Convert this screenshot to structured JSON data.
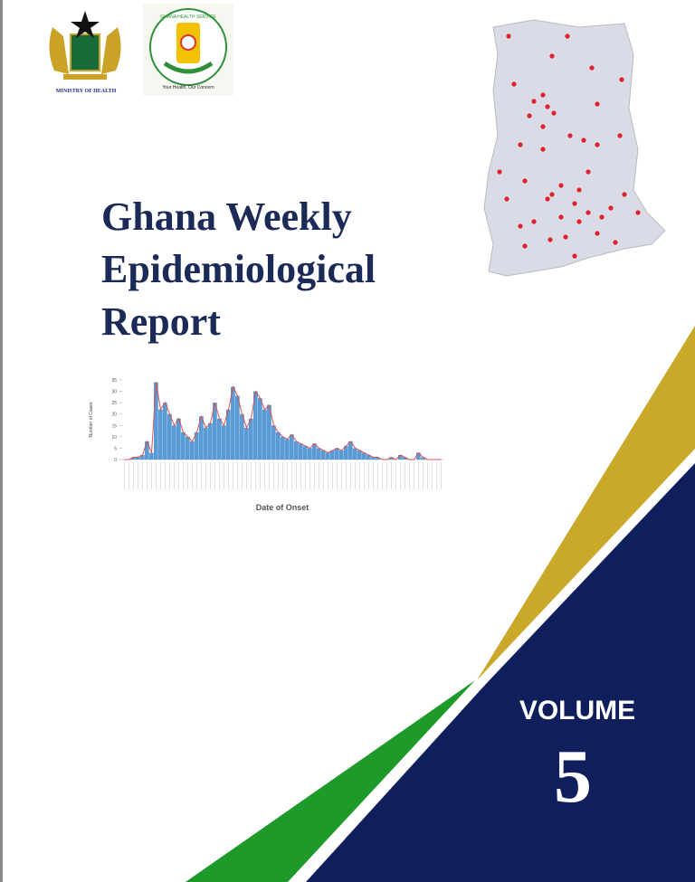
{
  "header": {
    "ministry": "MINISTRY OF HEALTH",
    "service_name": "GHANA HEALTH SERVICE",
    "service_motto": "Your Health, Our Concern"
  },
  "title": {
    "lines": [
      "Ghana Weekly",
      "Epidemiological",
      "Report"
    ]
  },
  "volume": {
    "label": "VOLUME",
    "number": "5"
  },
  "chart_data": {
    "type": "bar",
    "x_label": "Date of Onset",
    "y_label": "Number of Cases",
    "color": "#5b9bd5",
    "line_color": "#d9534f",
    "values": [
      0,
      0,
      1,
      1,
      2,
      8,
      3,
      34,
      22,
      25,
      20,
      15,
      18,
      12,
      10,
      8,
      12,
      19,
      14,
      16,
      25,
      18,
      15,
      22,
      32,
      28,
      20,
      14,
      18,
      30,
      27,
      22,
      24,
      15,
      12,
      10,
      9,
      11,
      8,
      7,
      6,
      5,
      7,
      5,
      4,
      3,
      4,
      5,
      4,
      6,
      8,
      5,
      4,
      3,
      2,
      1,
      1,
      0,
      0,
      1,
      0,
      2,
      1,
      0,
      0,
      3,
      1,
      0,
      0,
      0,
      0
    ],
    "ylim": [
      0,
      35
    ],
    "yticks": [
      0,
      5,
      10,
      15,
      20,
      25,
      30,
      35
    ]
  }
}
